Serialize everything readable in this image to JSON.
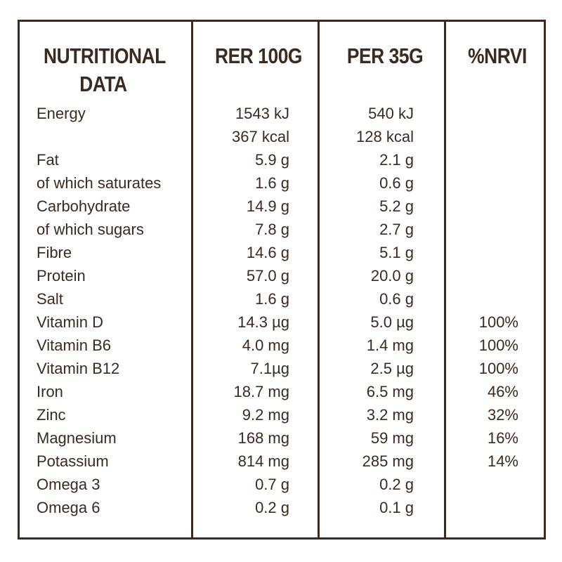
{
  "table": {
    "headers": [
      "NUTRITIONAL DATA",
      "RER 100G",
      "PER 35G",
      "%NRVI"
    ],
    "rows": [
      [
        "Energy",
        "1543 kJ",
        "540 kJ",
        null
      ],
      [
        null,
        "367 kcal",
        "128 kcal",
        null
      ],
      [
        "Fat",
        "5.9 g",
        "2.1 g",
        null
      ],
      [
        "of which saturates",
        "1.6 g",
        "0.6 g",
        null
      ],
      [
        "Carbohydrate",
        "14.9 g",
        "5.2 g",
        null
      ],
      [
        "of which sugars",
        "7.8 g",
        "2.7 g",
        null
      ],
      [
        "Fibre",
        "14.6 g",
        "5.1 g",
        null
      ],
      [
        "Protein",
        "57.0 g",
        "20.0 g",
        null
      ],
      [
        "Salt",
        "1.6 g",
        "0.6 g",
        null
      ],
      [
        "Vitamin D",
        "14.3 µg",
        "5.0 µg",
        "100%"
      ],
      [
        "Vitamin B6",
        "4.0 mg",
        "1.4 mg",
        "100%"
      ],
      [
        "Vitamin B12",
        "7.1µg",
        "2.5 µg",
        "100%"
      ],
      [
        "Iron",
        "18.7 mg",
        "6.5 mg",
        "46%"
      ],
      [
        "Zinc",
        "9.2 mg",
        "3.2 mg",
        "32%"
      ],
      [
        "Magnesium",
        "168 mg",
        "59 mg",
        "16%"
      ],
      [
        "Potassium",
        "814 mg",
        "285 mg",
        "14%"
      ],
      [
        "Omega 3",
        "0.7 g",
        "0.2 g",
        null
      ],
      [
        "Omega 6",
        "0.2 g",
        "0.1 g",
        null
      ]
    ]
  }
}
